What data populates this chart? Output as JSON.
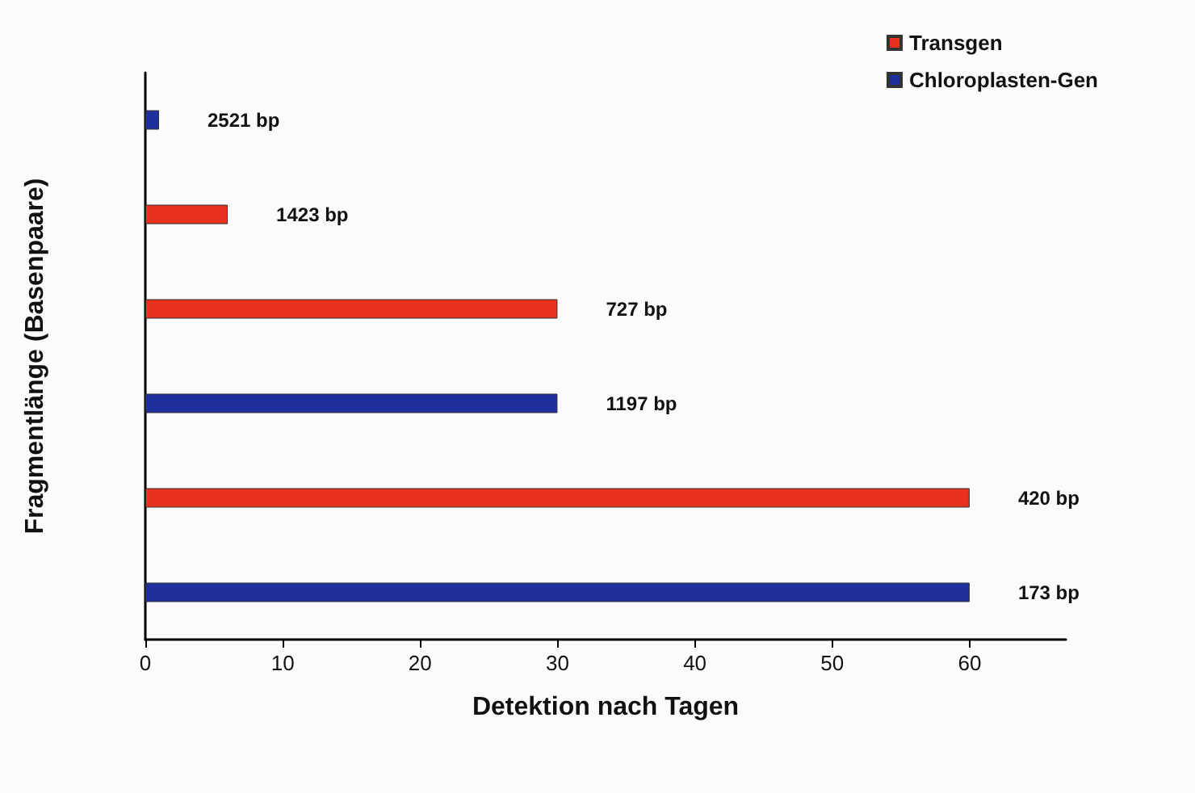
{
  "chart_data": {
    "type": "bar",
    "orientation": "horizontal",
    "xlabel": "Detektion nach Tagen",
    "ylabel": "Fragmentlänge (Basenpaare)",
    "categories": [
      "2521 bp",
      "1423 bp",
      "727 bp",
      "1197 bp",
      "420 bp",
      "173 bp"
    ],
    "series": [
      {
        "name": "Transgen",
        "color": "#e8321e",
        "values": [
          null,
          6,
          30,
          null,
          60,
          null
        ]
      },
      {
        "name": "Chloroplasten-Gen",
        "color": "#1f2f9e",
        "values": [
          1,
          null,
          null,
          30,
          null,
          60
        ]
      }
    ],
    "xlim": [
      0,
      67
    ],
    "xticks": [
      0,
      10,
      20,
      30,
      40,
      50,
      60
    ],
    "tick_labels": "x",
    "grid": false,
    "legend": "top right"
  }
}
